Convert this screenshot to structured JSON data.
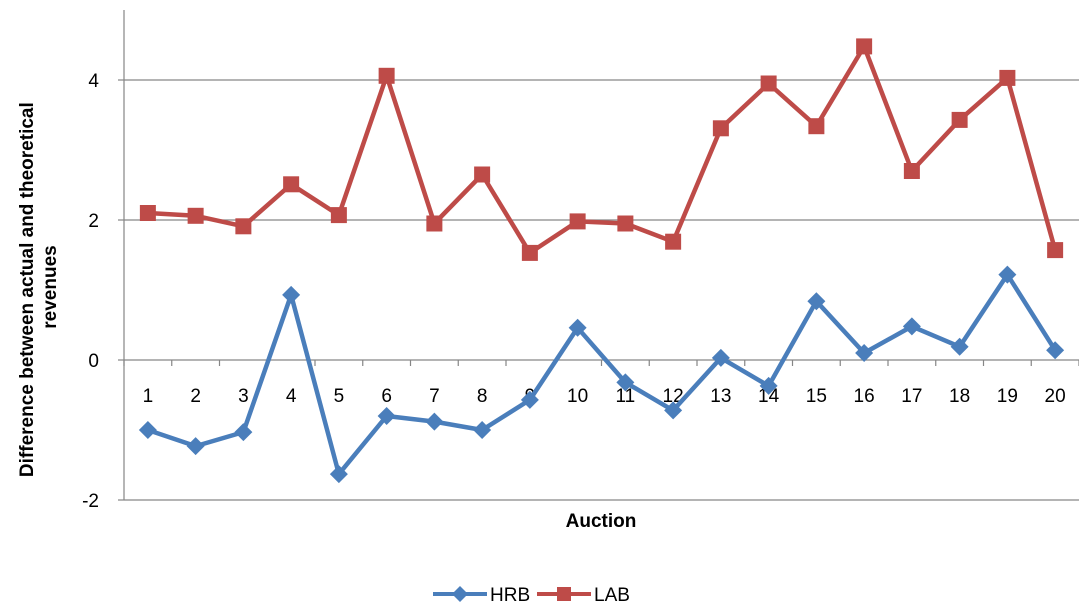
{
  "chart_data": {
    "type": "line",
    "title": "",
    "xlabel": "Auction",
    "ylabel_lines": [
      "Difference between actual and theoretical",
      "revenues"
    ],
    "x": [
      "1",
      "2",
      "3",
      "4",
      "5",
      "6",
      "7",
      "8",
      "9",
      "10",
      "11",
      "12",
      "13",
      "14",
      "15",
      "16",
      "17",
      "18",
      "19",
      "20"
    ],
    "ylim": [
      -2,
      5
    ],
    "yticks": [
      "-2",
      "0",
      "2",
      "4"
    ],
    "grid": true,
    "legend_position": "bottom",
    "series": [
      {
        "name": "HRB",
        "color": "#4A7EBB",
        "marker": "diamond",
        "values": [
          -1.0,
          -1.23,
          -1.03,
          0.93,
          -1.63,
          -0.8,
          -0.88,
          -1.0,
          -0.57,
          0.46,
          -0.32,
          -0.72,
          0.03,
          -0.37,
          0.84,
          0.1,
          0.48,
          0.19,
          1.22,
          0.14
        ]
      },
      {
        "name": "LAB",
        "color": "#BE4B48",
        "marker": "square",
        "values": [
          2.1,
          2.06,
          1.91,
          2.51,
          2.07,
          4.06,
          1.95,
          2.65,
          1.53,
          1.98,
          1.95,
          1.69,
          3.31,
          3.95,
          3.34,
          4.48,
          2.7,
          3.43,
          4.03,
          1.57
        ]
      }
    ]
  }
}
